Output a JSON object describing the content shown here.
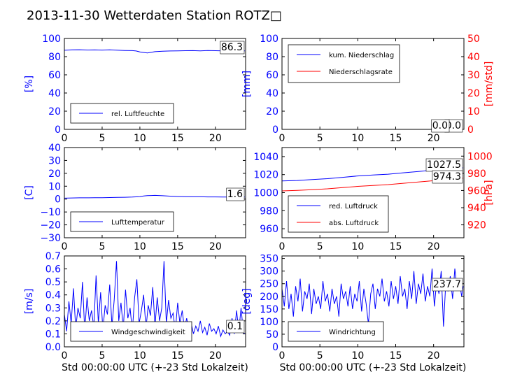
{
  "title": "2013-11-30 Wetterdaten Station ROTZ□",
  "chart_data": [
    {
      "id": "p1",
      "type": "line",
      "xlim": [
        0,
        24
      ],
      "xticks": [
        "0",
        "5",
        "10",
        "15",
        "20"
      ],
      "y_left": {
        "label": "[%]",
        "lim": [
          0,
          100
        ],
        "ticks": [
          "0",
          "20",
          "40",
          "60",
          "80",
          "100"
        ],
        "color": "#0000ff"
      },
      "series": [
        {
          "name": "rel. Luftfeuchte",
          "axis": "left",
          "color": "#0000ff",
          "x": [
            0,
            1,
            2,
            3,
            4,
            5,
            6,
            7,
            8,
            9,
            9.5,
            10,
            10.5,
            11,
            11.5,
            12,
            13,
            14,
            15,
            16,
            17,
            18,
            19,
            20,
            21,
            22,
            23,
            23.9
          ],
          "y": [
            87,
            87.5,
            87.6,
            87.3,
            87.4,
            87.2,
            87.5,
            87.1,
            86.8,
            86.6,
            86.2,
            85.2,
            84.6,
            84.1,
            84.8,
            85.5,
            85.9,
            86.2,
            86.3,
            86.5,
            86.6,
            86.4,
            86.7,
            86.5,
            86.4,
            86.3,
            86.4,
            86.3
          ]
        }
      ],
      "value_labels": [
        "86.3"
      ],
      "legend_loc": "lower-left"
    },
    {
      "id": "p2",
      "type": "line",
      "xlim": [
        0,
        24
      ],
      "xticks": [
        "0",
        "5",
        "10",
        "15",
        "20"
      ],
      "y_left": {
        "label": "[mm]",
        "lim": [
          0,
          100
        ],
        "ticks": [
          "0",
          "20",
          "40",
          "60",
          "80",
          "100"
        ],
        "color": "#0000ff"
      },
      "y_right": {
        "label": "[mm/std]",
        "lim": [
          0,
          50
        ],
        "ticks": [
          "0",
          "10",
          "20",
          "30",
          "40",
          "50"
        ],
        "color": "#ff0000"
      },
      "series": [
        {
          "name": "kum. Niederschlag",
          "axis": "left",
          "color": "#0000ff",
          "x": [
            0,
            23.9
          ],
          "y": [
            0,
            0
          ]
        },
        {
          "name": "Niederschlagsrate",
          "axis": "right",
          "color": "#ff0000",
          "x": [
            0,
            23.9
          ],
          "y": [
            0,
            0
          ]
        }
      ],
      "value_labels": [
        "0.0",
        "0.0"
      ],
      "legend_loc": "upper-left"
    },
    {
      "id": "p3",
      "type": "line",
      "xlim": [
        0,
        24
      ],
      "xticks": [
        "0",
        "5",
        "10",
        "15",
        "20"
      ],
      "y_left": {
        "label": "[C]",
        "lim": [
          -30,
          40
        ],
        "ticks": [
          "−30",
          "−20",
          "−10",
          "0",
          "10",
          "20",
          "30",
          "40"
        ],
        "color": "#0000ff"
      },
      "series": [
        {
          "name": "Lufttemperatur",
          "axis": "left",
          "color": "#0000ff",
          "x": [
            0,
            1,
            2,
            3,
            4,
            5,
            6,
            7,
            8,
            9,
            10,
            10.5,
            11,
            11.5,
            12,
            12.5,
            13,
            14,
            15,
            16,
            17,
            18,
            19,
            20,
            21,
            22,
            23,
            23.9
          ],
          "y": [
            0.7,
            0.9,
            1.0,
            1.0,
            1.1,
            1.1,
            1.2,
            1.3,
            1.4,
            1.6,
            1.9,
            2.4,
            2.7,
            2.8,
            2.9,
            2.8,
            2.6,
            2.3,
            2.0,
            1.9,
            1.8,
            1.8,
            1.7,
            1.7,
            1.6,
            1.6,
            1.6,
            1.6
          ]
        }
      ],
      "value_labels": [
        "1.6"
      ],
      "legend_loc": "lower-left"
    },
    {
      "id": "p4",
      "type": "line",
      "xlim": [
        0,
        24
      ],
      "xticks": [
        "0",
        "5",
        "10",
        "15",
        "20"
      ],
      "y_left": {
        "label": "",
        "lim": [
          950,
          1050
        ],
        "ticks": [
          "960",
          "980",
          "1000",
          "1020",
          "1040"
        ],
        "color": "#0000ff"
      },
      "y_right": {
        "label": "[hPa]",
        "lim": [
          905,
          1010
        ],
        "ticks": [
          "920",
          "940",
          "960",
          "980",
          "1000"
        ],
        "color": "#ff0000"
      },
      "series": [
        {
          "name": "red. Luftdruck",
          "axis": "left",
          "color": "#0000ff",
          "x": [
            0,
            2,
            4,
            6,
            8,
            10,
            12,
            14,
            16,
            18,
            20,
            22,
            23.9
          ],
          "y": [
            1013,
            1013.5,
            1014.5,
            1015.5,
            1017,
            1018.5,
            1019.5,
            1020.5,
            1022,
            1023.5,
            1025,
            1026.5,
            1027.5
          ]
        },
        {
          "name": "abs. Luftdruck",
          "axis": "right",
          "color": "#ff0000",
          "x": [
            0,
            2,
            4,
            6,
            8,
            10,
            12,
            14,
            16,
            18,
            20,
            22,
            23.9
          ],
          "y": [
            959.5,
            960.2,
            961.0,
            962.0,
            963.4,
            964.8,
            965.9,
            966.9,
            968.4,
            969.9,
            971.4,
            972.9,
            974.3
          ]
        }
      ],
      "value_labels": [
        "1027.5",
        "974.3"
      ],
      "legend_loc": "lower-left"
    },
    {
      "id": "p5",
      "type": "line",
      "xlim": [
        0,
        24
      ],
      "xticks": [
        "0",
        "5",
        "10",
        "15",
        "20"
      ],
      "xlabel": "Std 00:00:00 UTC (+-23 Std Lokalzeit)",
      "y_left": {
        "label": "[m/s]",
        "lim": [
          0,
          0.7
        ],
        "ticks": [
          "0.0",
          "0.1",
          "0.2",
          "0.3",
          "0.4",
          "0.5",
          "0.6",
          "0.7"
        ],
        "color": "#0000ff"
      },
      "series": [
        {
          "name": "Windgeschwindigkeit",
          "axis": "left",
          "color": "#0000ff",
          "x": [
            0,
            0.3,
            0.6,
            0.9,
            1.2,
            1.5,
            1.8,
            2.1,
            2.4,
            2.7,
            3,
            3.3,
            3.6,
            3.9,
            4.2,
            4.5,
            4.8,
            5.1,
            5.4,
            5.7,
            6,
            6.3,
            6.6,
            6.9,
            7.2,
            7.5,
            7.8,
            8.1,
            8.4,
            8.7,
            9,
            9.3,
            9.6,
            9.9,
            10.2,
            10.5,
            10.8,
            11.1,
            11.4,
            11.7,
            12,
            12.3,
            12.6,
            12.9,
            13.2,
            13.5,
            13.8,
            14.1,
            14.4,
            14.7,
            15,
            15.3,
            15.6,
            15.9,
            16.2,
            16.5,
            16.8,
            17.1,
            17.4,
            17.7,
            18,
            18.3,
            18.6,
            18.9,
            19.2,
            19.5,
            19.8,
            20.1,
            20.4,
            20.7,
            21,
            21.3,
            21.6,
            21.9,
            22.2,
            22.5,
            22.8,
            23.1,
            23.4,
            23.7,
            23.9
          ],
          "y": [
            0.25,
            0.12,
            0.35,
            0.18,
            0.45,
            0.14,
            0.3,
            0.22,
            0.5,
            0.12,
            0.38,
            0.2,
            0.28,
            0.15,
            0.55,
            0.18,
            0.42,
            0.13,
            0.32,
            0.25,
            0.48,
            0.16,
            0.36,
            0.66,
            0.2,
            0.34,
            0.14,
            0.44,
            0.22,
            0.3,
            0.12,
            0.38,
            0.52,
            0.18,
            0.28,
            0.4,
            0.14,
            0.32,
            0.24,
            0.46,
            0.16,
            0.38,
            0.2,
            0.3,
            0.66,
            0.18,
            0.36,
            0.22,
            0.26,
            0.12,
            0.34,
            0.18,
            0.28,
            0.14,
            0.22,
            0.12,
            0.18,
            0.1,
            0.16,
            0.12,
            0.2,
            0.11,
            0.15,
            0.09,
            0.18,
            0.12,
            0.14,
            0.1,
            0.16,
            0.08,
            0.13,
            0.1,
            0.12,
            0.09,
            0.22,
            0.1,
            0.28,
            0.12,
            0.3,
            0.11,
            0.1
          ]
        }
      ],
      "value_labels": [
        "0.1"
      ],
      "legend_loc": "lower-left"
    },
    {
      "id": "p6",
      "type": "line",
      "xlim": [
        0,
        24
      ],
      "xticks": [
        "0",
        "5",
        "10",
        "15",
        "20"
      ],
      "xlabel": "Std 00:00:00 UTC (+-23 Std Lokalzeit)",
      "y_left": {
        "label": "[deg]",
        "lim": [
          0,
          360
        ],
        "ticks": [
          "0",
          "50",
          "100",
          "150",
          "200",
          "250",
          "300",
          "350"
        ],
        "color": "#0000ff"
      },
      "series": [
        {
          "name": "Windrichtung",
          "axis": "left",
          "color": "#0000ff",
          "x": [
            0,
            0.3,
            0.6,
            0.9,
            1.2,
            1.5,
            1.8,
            2.1,
            2.4,
            2.7,
            3,
            3.3,
            3.6,
            3.9,
            4.2,
            4.5,
            4.8,
            5.1,
            5.4,
            5.7,
            6,
            6.3,
            6.6,
            6.9,
            7.2,
            7.5,
            7.8,
            8.1,
            8.4,
            8.7,
            9,
            9.3,
            9.6,
            9.9,
            10.2,
            10.5,
            10.8,
            11.1,
            11.4,
            11.7,
            12,
            12.3,
            12.6,
            12.9,
            13.2,
            13.5,
            13.8,
            14.1,
            14.4,
            14.7,
            15,
            15.3,
            15.6,
            15.9,
            16.2,
            16.5,
            16.8,
            17.1,
            17.4,
            17.7,
            18,
            18.3,
            18.6,
            18.9,
            19.2,
            19.5,
            19.8,
            20.1,
            20.4,
            20.7,
            21,
            21.3,
            21.6,
            21.9,
            22.2,
            22.5,
            22.8,
            23.1,
            23.4,
            23.7,
            23.9
          ],
          "y": [
            230,
            160,
            260,
            150,
            210,
            120,
            240,
            180,
            270,
            140,
            220,
            190,
            250,
            130,
            230,
            170,
            200,
            150,
            260,
            180,
            210,
            140,
            230,
            170,
            200,
            120,
            250,
            190,
            220,
            160,
            240,
            150,
            210,
            180,
            260,
            140,
            230,
            170,
            90,
            210,
            250,
            150,
            230,
            200,
            270,
            180,
            220,
            160,
            260,
            190,
            240,
            170,
            280,
            200,
            230,
            150,
            260,
            190,
            300,
            170,
            250,
            210,
            290,
            180,
            240,
            200,
            310,
            160,
            260,
            210,
            300,
            80,
            250,
            220,
            280,
            190,
            310,
            230,
            260,
            200,
            240
          ]
        }
      ],
      "value_labels": [
        "237.7"
      ],
      "legend_loc": "lower-left"
    }
  ]
}
